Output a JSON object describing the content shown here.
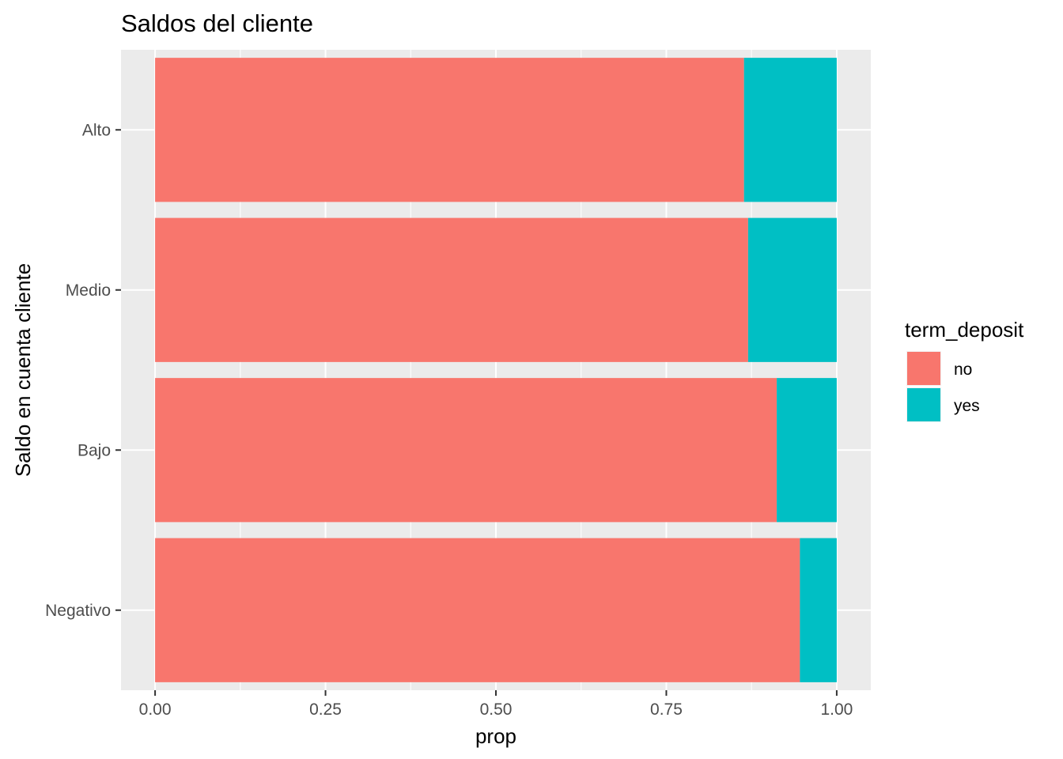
{
  "chart_data": {
    "type": "bar",
    "orientation": "horizontal",
    "stacked": true,
    "title": "Saldos del cliente",
    "xlabel": "prop",
    "ylabel": "Saldo en cuenta cliente",
    "categories": [
      "Alto",
      "Medio",
      "Bajo",
      "Negativo"
    ],
    "series": [
      {
        "name": "no",
        "values": [
          0.864,
          0.87,
          0.912,
          0.946
        ]
      },
      {
        "name": "yes",
        "values": [
          0.136,
          0.13,
          0.088,
          0.054
        ]
      }
    ],
    "xlim": [
      -0.05,
      1.05
    ],
    "x_ticks": [
      0.0,
      0.25,
      0.5,
      0.75,
      1.0
    ],
    "x_tick_labels": [
      "0.00",
      "0.25",
      "0.50",
      "0.75",
      "1.00"
    ],
    "grid": true,
    "legend": {
      "title": "term_deposit",
      "placement": "right"
    },
    "colors": {
      "no": "#F8766D",
      "yes": "#00BFC4",
      "panel": "#EBEBEB",
      "grid": "#FFFFFF"
    }
  }
}
